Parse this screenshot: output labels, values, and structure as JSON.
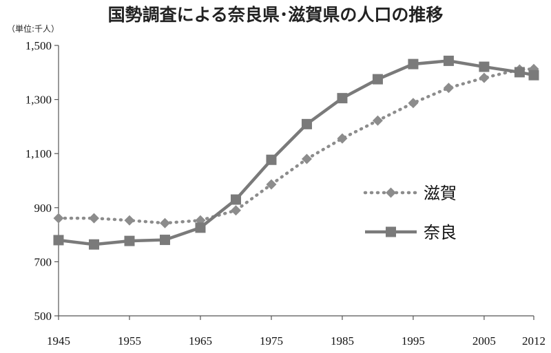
{
  "chart_data": {
    "type": "line",
    "title": "国勢調査による奈良県･滋賀県の人口の推移",
    "unit_label": "（単位:千人）",
    "xlabel": "",
    "ylabel": "",
    "ylim": [
      500,
      1500
    ],
    "y_ticks": [
      "500",
      "700",
      "900",
      "1,100",
      "1,300",
      "1,500"
    ],
    "y_tick_values": [
      500,
      700,
      900,
      1100,
      1300,
      1500
    ],
    "x_ticks": [
      "1945",
      "1955",
      "1965",
      "1975",
      "1985",
      "1995",
      "2005",
      "2012"
    ],
    "x_tick_values": [
      1945,
      1955,
      1965,
      1975,
      1985,
      1995,
      2005,
      2012
    ],
    "xlim": [
      1945,
      2012
    ],
    "grid": false,
    "legend_position": "right",
    "x": [
      1945,
      1950,
      1955,
      1960,
      1965,
      1970,
      1975,
      1980,
      1985,
      1990,
      1995,
      2000,
      2005,
      2010,
      2012
    ],
    "series": [
      {
        "name": "滋賀",
        "style": "dotted",
        "marker": "diamond",
        "color": "#8c8c8c",
        "values": [
          861,
          861,
          853,
          843,
          853,
          890,
          986,
          1080,
          1156,
          1222,
          1287,
          1343,
          1380,
          1411,
          1413
        ]
      },
      {
        "name": "奈良",
        "style": "solid",
        "marker": "square",
        "color": "#7a7a7a",
        "values": [
          780,
          764,
          777,
          781,
          826,
          930,
          1077,
          1209,
          1305,
          1375,
          1431,
          1443,
          1421,
          1401,
          1390
        ]
      }
    ]
  }
}
